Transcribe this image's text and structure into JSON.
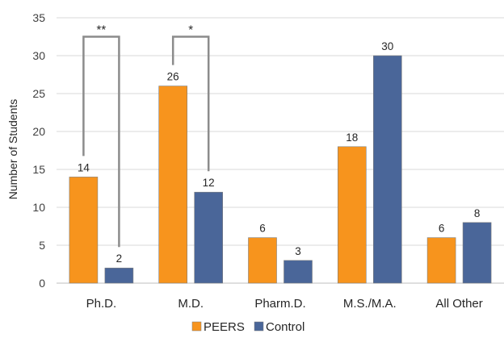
{
  "chart_data": {
    "type": "bar",
    "categories": [
      "Ph.D.",
      "M.D.",
      "Pharm.D.",
      "M.S./M.A.",
      "All Other"
    ],
    "series": [
      {
        "name": "PEERS",
        "color": "#F7941D",
        "values": [
          14,
          26,
          6,
          18,
          6
        ]
      },
      {
        "name": "Control",
        "color": "#4A6699",
        "values": [
          2,
          12,
          3,
          30,
          8
        ]
      }
    ],
    "title": "",
    "xlabel": "",
    "ylabel": "Number of Students",
    "ylim": [
      0,
      35
    ],
    "yticks": [
      0,
      5,
      10,
      15,
      20,
      25,
      30,
      35
    ],
    "grid": true,
    "legend": "bottom",
    "significance": [
      {
        "category": "Ph.D.",
        "label": "**"
      },
      {
        "category": "M.D.",
        "label": "*"
      }
    ]
  }
}
